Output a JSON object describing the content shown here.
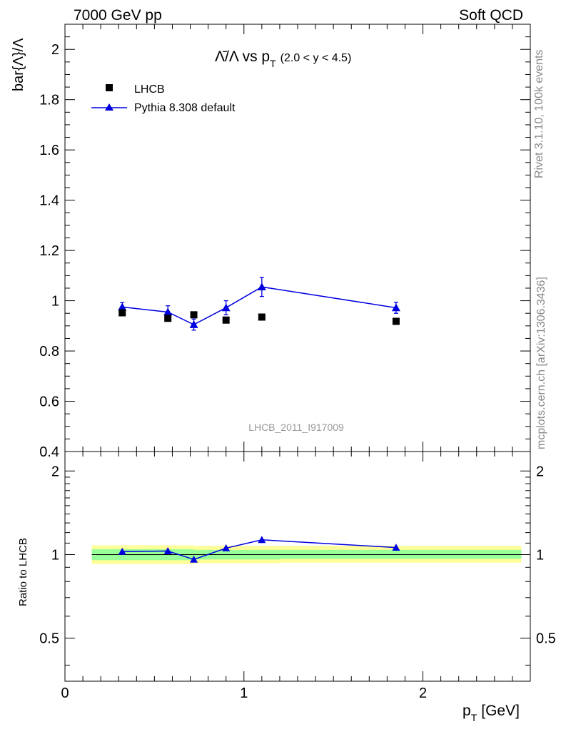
{
  "header": {
    "left": "7000 GeV pp",
    "right": "Soft QCD"
  },
  "side_labels": {
    "rivet": "Rivet 3.1.10,  100k events",
    "mcplots": "mcplots.cern.ch [arXiv:1306.3436]"
  },
  "chart_data": {
    "type": "scatter",
    "title_parts": {
      "main": "Λ̄/Λ vs p",
      "sub": "T",
      "range": "(2.0 < y < 4.5)"
    },
    "analysis_id": "LHCB_2011_I917009",
    "xlabel": "p",
    "xlabel_sub": "T",
    "xlabel_unit": "[GeV]",
    "ylabel": "bar{Λ}/Λ",
    "ratio_ylabel": "Ratio to LHCB",
    "xlim": [
      0,
      2.6
    ],
    "ylim": [
      0.4,
      2.1
    ],
    "ratio_ylim": [
      0.35,
      2.35
    ],
    "x_ticks": [
      {
        "v": 0,
        "label": "0"
      },
      {
        "v": 1,
        "label": "1"
      },
      {
        "v": 2,
        "label": "2"
      }
    ],
    "y_ticks": [
      {
        "v": 0.4,
        "label": "0.4"
      },
      {
        "v": 0.6,
        "label": "0.6"
      },
      {
        "v": 0.8,
        "label": "0.8"
      },
      {
        "v": 1.0,
        "label": "1"
      },
      {
        "v": 1.2,
        "label": "1.2"
      },
      {
        "v": 1.4,
        "label": "1.4"
      },
      {
        "v": 1.6,
        "label": "1.6"
      },
      {
        "v": 1.8,
        "label": "1.8"
      },
      {
        "v": 2.0,
        "label": "2"
      }
    ],
    "ratio_y_ticks": [
      {
        "v": 0.5,
        "label": "0.5"
      },
      {
        "v": 1.0,
        "label": "1"
      },
      {
        "v": 2.0,
        "label": "2"
      }
    ],
    "legend": {
      "data_label": "LHCB",
      "mc_label": "Pythia 8.308 default"
    },
    "colors": {
      "data": "#000000",
      "mc": "#0000e0",
      "band_inner": "#99ff99",
      "band_outer": "#ffff99"
    },
    "data_points": [
      {
        "x": 0.32,
        "y": 0.952
      },
      {
        "x": 0.575,
        "y": 0.93
      },
      {
        "x": 0.72,
        "y": 0.944
      },
      {
        "x": 0.9,
        "y": 0.923
      },
      {
        "x": 1.1,
        "y": 0.935
      },
      {
        "x": 1.85,
        "y": 0.918
      }
    ],
    "mc_points": [
      {
        "x": 0.32,
        "y": 0.975,
        "err": 0.018
      },
      {
        "x": 0.575,
        "y": 0.955,
        "err": 0.025
      },
      {
        "x": 0.72,
        "y": 0.905,
        "err": 0.022
      },
      {
        "x": 0.9,
        "y": 0.972,
        "err": 0.028
      },
      {
        "x": 1.1,
        "y": 1.055,
        "err": 0.038
      },
      {
        "x": 1.85,
        "y": 0.972,
        "err": 0.022
      }
    ],
    "ratio_points": [
      {
        "x": 0.32,
        "y": 1.025,
        "err": 0.015
      },
      {
        "x": 0.575,
        "y": 1.03,
        "err": 0.02
      },
      {
        "x": 0.72,
        "y": 0.96,
        "err": 0.02
      },
      {
        "x": 0.9,
        "y": 1.055,
        "err": 0.025
      },
      {
        "x": 1.1,
        "y": 1.13,
        "err": 0.03
      },
      {
        "x": 1.85,
        "y": 1.06,
        "err": 0.02
      }
    ],
    "bands": [
      {
        "x0": 0.15,
        "x1": 0.72,
        "inner": [
          0.955,
          1.045
        ],
        "outer": [
          0.925,
          1.08
        ]
      },
      {
        "x0": 0.72,
        "x1": 1.2,
        "inner": [
          0.96,
          1.04
        ],
        "outer": [
          0.93,
          1.075
        ]
      },
      {
        "x0": 1.2,
        "x1": 2.55,
        "inner": [
          0.965,
          1.04
        ],
        "outer": [
          0.935,
          1.075
        ]
      }
    ]
  }
}
